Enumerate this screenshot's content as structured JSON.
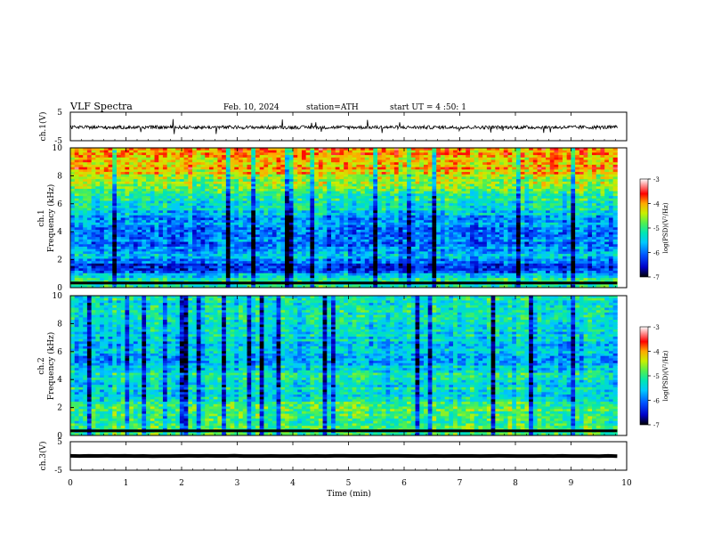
{
  "header": {
    "title": "VLF  Spectra",
    "date": "Feb. 10, 2024",
    "station": "station=ATH",
    "start": "start  UT  =   4  :50: 1"
  },
  "colors": {
    "spectrogram_scale": [
      "#000000",
      "#0000c8",
      "#0050ff",
      "#00c8ff",
      "#00e6b4",
      "#50f050",
      "#c8f000",
      "#ffaa00",
      "#ff0000",
      "#ffffff"
    ],
    "waveform": "#000000"
  },
  "chart_data": [
    {
      "type": "line",
      "panel": "ch1-waveform",
      "ylabel": "ch.1(V)",
      "ylim": [
        -5,
        5
      ],
      "yticks": [
        "5",
        "-5"
      ],
      "xlim": [
        0,
        10
      ],
      "trace_level": -0.3,
      "trace_spread": 0.6
    },
    {
      "type": "heatmap",
      "panel": "ch1-spectrogram",
      "ylabel_line1": "ch.1",
      "ylabel_line2": "Frequency  (kHz)",
      "ylim": [
        0,
        10
      ],
      "yticks": [
        "0",
        "2",
        "4",
        "6",
        "8",
        "10"
      ],
      "xlim": [
        0,
        9.83
      ],
      "colorbar": {
        "label": "log(PSD)(V²/Hz)",
        "range": [
          -7,
          -3
        ],
        "ticks": [
          "-3",
          "-4",
          "-5",
          "-6",
          "-7"
        ]
      },
      "bands": [
        {
          "f": 8.8,
          "level": -4.0
        },
        {
          "f": 7.2,
          "level": -4.8
        },
        {
          "f": 5.2,
          "level": -5.6
        },
        {
          "f": 3.6,
          "level": -6.1
        },
        {
          "f": 2.3,
          "level": -5.7
        },
        {
          "f": 1.4,
          "level": -6.4
        },
        {
          "f": 0.6,
          "level": -5.2
        }
      ]
    },
    {
      "type": "heatmap",
      "panel": "ch2-spectrogram",
      "ylabel_line1": "ch.2",
      "ylabel_line2": "Frequency  (kHz)",
      "ylim": [
        0,
        10
      ],
      "yticks": [
        "0",
        "2",
        "4",
        "6",
        "8",
        "10"
      ],
      "xlim": [
        0,
        9.83
      ],
      "colorbar": {
        "label": "log(PSD)(V²/Hz)",
        "range": [
          -7,
          -3
        ],
        "ticks": [
          "-3",
          "-4",
          "-5",
          "-6",
          "-7"
        ]
      },
      "bands": [
        {
          "f": 8.8,
          "level": -5.2
        },
        {
          "f": 7.0,
          "level": -5.4
        },
        {
          "f": 5.5,
          "level": -5.7
        },
        {
          "f": 4.2,
          "level": -5.2
        },
        {
          "f": 2.8,
          "level": -5.4
        },
        {
          "f": 1.8,
          "level": -4.9
        },
        {
          "f": 0.8,
          "level": -5.0
        }
      ]
    },
    {
      "type": "line",
      "panel": "ch3-waveform",
      "ylabel": "ch.3(V)",
      "ylim": [
        -5,
        5
      ],
      "yticks": [
        "5",
        "-5"
      ],
      "xlim": [
        0,
        10
      ],
      "trace_level": 0,
      "trace_spread": 0.05
    }
  ],
  "x_axis": {
    "label": "Time  (min)",
    "ticks": [
      "0",
      "1",
      "2",
      "3",
      "4",
      "5",
      "6",
      "7",
      "8",
      "9",
      "10"
    ],
    "range": [
      0,
      10
    ]
  }
}
